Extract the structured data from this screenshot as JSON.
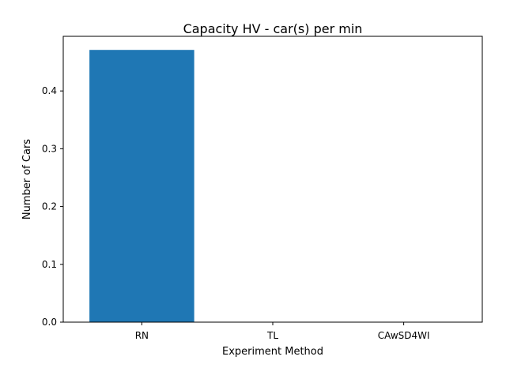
{
  "chart_data": {
    "type": "bar",
    "title": "Capacity HV - car(s) per min",
    "xlabel": "Experiment Method",
    "ylabel": "Number of Cars",
    "categories": [
      "RN",
      "TL",
      "CAwSD4WI"
    ],
    "values": [
      0.471,
      0.0,
      0.0
    ],
    "ylim": [
      0,
      0.4945
    ],
    "yticks": [
      0.0,
      0.1,
      0.2,
      0.3,
      0.4
    ],
    "ytick_labels": [
      "0.0",
      "0.1",
      "0.2",
      "0.3",
      "0.4"
    ],
    "bar_color": "#1f77b4",
    "grid": false,
    "legend": "none"
  }
}
